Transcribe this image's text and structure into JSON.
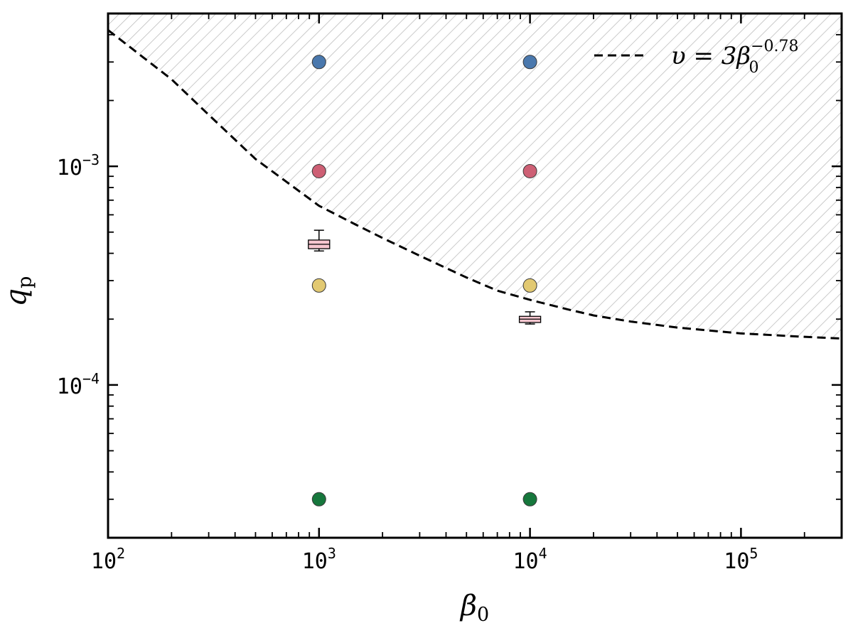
{
  "chart_data": {
    "type": "scatter",
    "xscale": "log",
    "yscale": "log",
    "xlim": [
      100,
      300000
    ],
    "ylim": [
      2e-05,
      0.005
    ],
    "xlabel": {
      "main": "β",
      "sub": "0"
    },
    "ylabel": {
      "main": "q",
      "sub": "p"
    },
    "x_ticks": [
      {
        "base": "10",
        "exp": "2",
        "value": 100
      },
      {
        "base": "10",
        "exp": "3",
        "value": 1000
      },
      {
        "base": "10",
        "exp": "4",
        "value": 10000
      },
      {
        "base": "10",
        "exp": "5",
        "value": 100000
      }
    ],
    "y_ticks": [
      {
        "base": "10",
        "exp": "−4",
        "value": 0.0001
      },
      {
        "base": "10",
        "exp": "−3",
        "value": 0.001
      }
    ],
    "points": [
      {
        "x": 1000,
        "y": 0.003,
        "color": "#4a78ad"
      },
      {
        "x": 1000,
        "y": 0.00095,
        "color": "#cd5f74"
      },
      {
        "x": 1000,
        "y": 0.000285,
        "color": "#e2c972"
      },
      {
        "x": 1000,
        "y": 3e-05,
        "color": "#16773c"
      },
      {
        "x": 10000,
        "y": 0.003,
        "color": "#4a78ad"
      },
      {
        "x": 10000,
        "y": 0.00095,
        "color": "#cd5f74"
      },
      {
        "x": 10000,
        "y": 0.000285,
        "color": "#e2c972"
      },
      {
        "x": 10000,
        "y": 3e-05,
        "color": "#16773c"
      }
    ],
    "boxes": [
      {
        "x": 1000,
        "q1": 0.00042,
        "q3": 0.00046,
        "median": 0.00044,
        "whisker_low": 0.00041,
        "whisker_high": 0.00051,
        "color": "#f7c6cf"
      },
      {
        "x": 10000,
        "q1": 0.000193,
        "q3": 0.000206,
        "median": 0.0002,
        "whisker_low": 0.00019,
        "whisker_high": 0.000216,
        "color": "#f7c6cf"
      }
    ],
    "curve": {
      "label": {
        "var": "υ",
        "eq": " = 3",
        "base": "β",
        "sub": "0",
        "sup": "−0.78"
      },
      "style": "dashed",
      "color": "#000000",
      "points": [
        [
          100,
          0.0042
        ],
        [
          150,
          0.0031
        ],
        [
          200,
          0.0025
        ],
        [
          300,
          0.00172
        ],
        [
          500,
          0.00108
        ],
        [
          700,
          0.00085
        ],
        [
          1000,
          0.00066
        ],
        [
          1500,
          0.00054
        ],
        [
          2000,
          0.00047
        ],
        [
          3000,
          0.00039
        ],
        [
          5000,
          0.00031
        ],
        [
          7000,
          0.00027
        ],
        [
          10000,
          0.000245
        ],
        [
          15000,
          0.000222
        ],
        [
          20000,
          0.000208
        ],
        [
          30000,
          0.000195
        ],
        [
          50000,
          0.000183
        ],
        [
          100000,
          0.000172
        ],
        [
          200000,
          0.000166
        ],
        [
          300000,
          0.000163
        ]
      ]
    },
    "hatched_region": "above curve",
    "legend_position": "top-right",
    "grid": false
  }
}
